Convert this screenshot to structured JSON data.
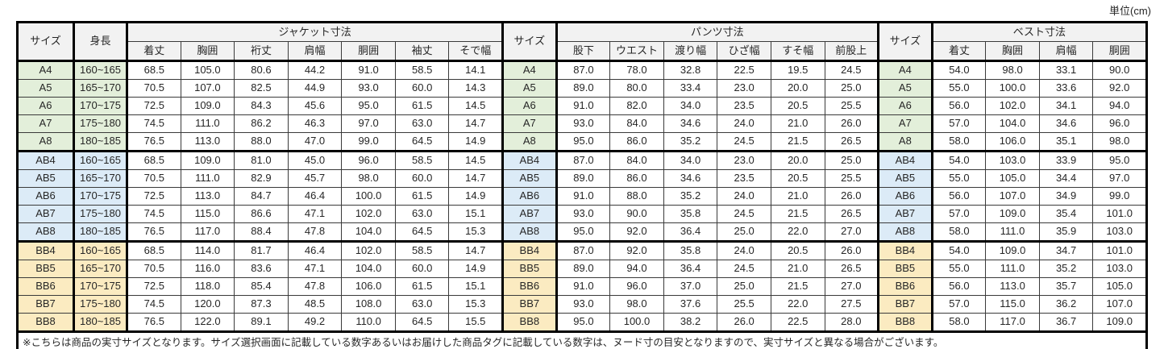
{
  "unit_label": "単位(cm)",
  "colors": {
    "header_bg": "#F2F2F2",
    "group_a": "#E3EFDA",
    "group_ab": "#DCEBF7",
    "group_bb": "#FBEBC1",
    "border_thin": "#3a3a3a",
    "border_thick": "#000000"
  },
  "table": {
    "size_label": "サイズ",
    "height_label": "身長",
    "sections": {
      "jacket": {
        "label": "ジャケット寸法",
        "columns": [
          "着丈",
          "胸囲",
          "裄丈",
          "肩幅",
          "胴囲",
          "袖丈",
          "そで幅"
        ]
      },
      "pants": {
        "label": "パンツ寸法",
        "columns": [
          "股下",
          "ウエスト",
          "渡り幅",
          "ひざ幅",
          "すそ幅",
          "前股上"
        ]
      },
      "vest": {
        "label": "ベスト寸法",
        "columns": [
          "着丈",
          "胸囲",
          "肩幅",
          "胴囲"
        ]
      }
    },
    "groups": [
      {
        "name": "A",
        "color_key": "group_a",
        "rows": [
          {
            "size": "A4",
            "height": "160~165",
            "jacket": [
              "68.5",
              "105.0",
              "80.6",
              "44.2",
              "91.0",
              "58.5",
              "14.1"
            ],
            "pants": [
              "87.0",
              "78.0",
              "32.8",
              "22.5",
              "19.5",
              "24.5"
            ],
            "vest": [
              "54.0",
              "98.0",
              "33.1",
              "90.0"
            ]
          },
          {
            "size": "A5",
            "height": "165~170",
            "jacket": [
              "70.5",
              "107.0",
              "82.5",
              "44.9",
              "93.0",
              "60.0",
              "14.3"
            ],
            "pants": [
              "89.0",
              "80.0",
              "33.4",
              "23.0",
              "20.0",
              "25.0"
            ],
            "vest": [
              "55.0",
              "100.0",
              "33.6",
              "92.0"
            ]
          },
          {
            "size": "A6",
            "height": "170~175",
            "jacket": [
              "72.5",
              "109.0",
              "84.3",
              "45.6",
              "95.0",
              "61.5",
              "14.5"
            ],
            "pants": [
              "91.0",
              "82.0",
              "34.0",
              "23.5",
              "20.5",
              "25.5"
            ],
            "vest": [
              "56.0",
              "102.0",
              "34.1",
              "94.0"
            ]
          },
          {
            "size": "A7",
            "height": "175~180",
            "jacket": [
              "74.5",
              "111.0",
              "86.2",
              "46.3",
              "97.0",
              "63.0",
              "14.7"
            ],
            "pants": [
              "93.0",
              "84.0",
              "34.6",
              "24.0",
              "21.0",
              "26.0"
            ],
            "vest": [
              "57.0",
              "104.0",
              "34.6",
              "96.0"
            ]
          },
          {
            "size": "A8",
            "height": "180~185",
            "jacket": [
              "76.5",
              "113.0",
              "88.0",
              "47.0",
              "99.0",
              "64.5",
              "14.9"
            ],
            "pants": [
              "95.0",
              "86.0",
              "35.2",
              "24.5",
              "21.5",
              "26.5"
            ],
            "vest": [
              "58.0",
              "106.0",
              "35.1",
              "98.0"
            ]
          }
        ]
      },
      {
        "name": "AB",
        "color_key": "group_ab",
        "rows": [
          {
            "size": "AB4",
            "height": "160~165",
            "jacket": [
              "68.5",
              "109.0",
              "81.0",
              "45.0",
              "96.0",
              "58.5",
              "14.5"
            ],
            "pants": [
              "87.0",
              "84.0",
              "34.0",
              "23.0",
              "20.0",
              "25.0"
            ],
            "vest": [
              "54.0",
              "103.0",
              "33.9",
              "95.0"
            ]
          },
          {
            "size": "AB5",
            "height": "165~170",
            "jacket": [
              "70.5",
              "111.0",
              "82.9",
              "45.7",
              "98.0",
              "60.0",
              "14.7"
            ],
            "pants": [
              "89.0",
              "86.0",
              "34.6",
              "23.5",
              "20.5",
              "25.5"
            ],
            "vest": [
              "55.0",
              "105.0",
              "34.4",
              "97.0"
            ]
          },
          {
            "size": "AB6",
            "height": "170~175",
            "jacket": [
              "72.5",
              "113.0",
              "84.7",
              "46.4",
              "100.0",
              "61.5",
              "14.9"
            ],
            "pants": [
              "91.0",
              "88.0",
              "35.2",
              "24.0",
              "21.0",
              "26.0"
            ],
            "vest": [
              "56.0",
              "107.0",
              "34.9",
              "99.0"
            ]
          },
          {
            "size": "AB7",
            "height": "175~180",
            "jacket": [
              "74.5",
              "115.0",
              "86.6",
              "47.1",
              "102.0",
              "63.0",
              "15.1"
            ],
            "pants": [
              "93.0",
              "90.0",
              "35.8",
              "24.5",
              "21.5",
              "26.5"
            ],
            "vest": [
              "57.0",
              "109.0",
              "35.4",
              "101.0"
            ]
          },
          {
            "size": "AB8",
            "height": "180~185",
            "jacket": [
              "76.5",
              "117.0",
              "88.4",
              "47.8",
              "104.0",
              "64.5",
              "15.3"
            ],
            "pants": [
              "95.0",
              "92.0",
              "36.4",
              "25.0",
              "22.0",
              "27.0"
            ],
            "vest": [
              "58.0",
              "111.0",
              "35.9",
              "103.0"
            ]
          }
        ]
      },
      {
        "name": "BB",
        "color_key": "group_bb",
        "rows": [
          {
            "size": "BB4",
            "height": "160~165",
            "jacket": [
              "68.5",
              "114.0",
              "81.7",
              "46.4",
              "102.0",
              "58.5",
              "14.7"
            ],
            "pants": [
              "87.0",
              "92.0",
              "35.8",
              "24.0",
              "20.5",
              "26.0"
            ],
            "vest": [
              "54.0",
              "109.0",
              "34.7",
              "101.0"
            ]
          },
          {
            "size": "BB5",
            "height": "165~170",
            "jacket": [
              "70.5",
              "116.0",
              "83.6",
              "47.1",
              "104.0",
              "60.0",
              "14.9"
            ],
            "pants": [
              "89.0",
              "94.0",
              "36.4",
              "24.5",
              "21.0",
              "26.5"
            ],
            "vest": [
              "55.0",
              "111.0",
              "35.2",
              "103.0"
            ]
          },
          {
            "size": "BB6",
            "height": "170~175",
            "jacket": [
              "72.5",
              "118.0",
              "85.4",
              "47.8",
              "106.0",
              "61.5",
              "15.1"
            ],
            "pants": [
              "91.0",
              "96.0",
              "37.0",
              "25.0",
              "21.5",
              "27.0"
            ],
            "vest": [
              "56.0",
              "113.0",
              "35.7",
              "105.0"
            ]
          },
          {
            "size": "BB7",
            "height": "175~180",
            "jacket": [
              "74.5",
              "120.0",
              "87.3",
              "48.5",
              "108.0",
              "63.0",
              "15.3"
            ],
            "pants": [
              "93.0",
              "98.0",
              "37.6",
              "25.5",
              "22.0",
              "27.5"
            ],
            "vest": [
              "57.0",
              "115.0",
              "36.2",
              "107.0"
            ]
          },
          {
            "size": "BB8",
            "height": "180~185",
            "jacket": [
              "76.5",
              "122.0",
              "89.1",
              "49.2",
              "110.0",
              "64.5",
              "15.5"
            ],
            "pants": [
              "95.0",
              "100.0",
              "38.2",
              "26.0",
              "22.5",
              "28.0"
            ],
            "vest": [
              "58.0",
              "117.0",
              "36.7",
              "109.0"
            ]
          }
        ]
      }
    ],
    "footnote": "※こちらは商品の実寸サイズとなります。サイズ選択画面に記載している数字あるいはお届けした商品タグに記載している数字は、ヌード寸の目安となりますので、実寸サイズと異なる場合がございます。"
  }
}
